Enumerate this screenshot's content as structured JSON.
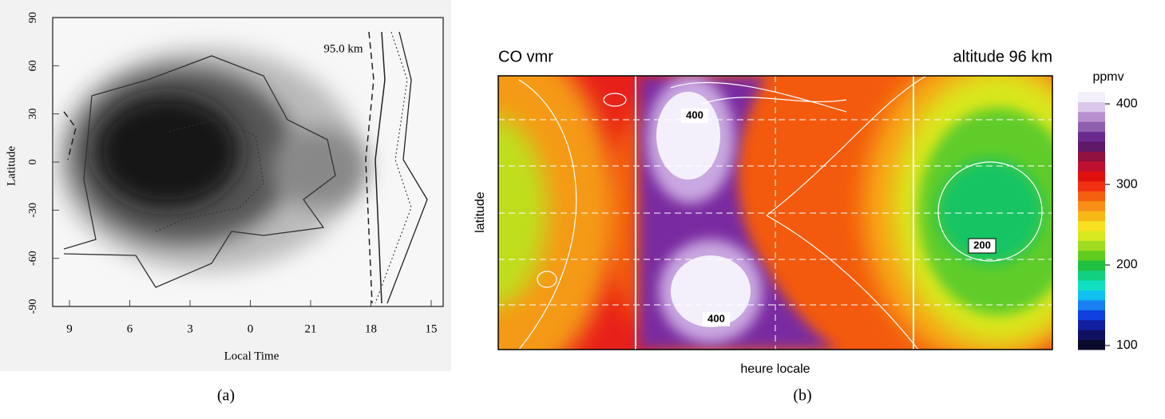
{
  "chart_data": [
    {
      "type": "contour",
      "annotation": "95.0 km",
      "xlabel": "Local Time",
      "ylabel": "Latitude",
      "xticks": [
        9,
        6,
        3,
        0,
        21,
        18,
        15
      ],
      "ylim": [
        -90,
        90
      ],
      "yticks": [
        -90,
        -60,
        -30,
        0,
        30,
        60,
        90
      ],
      "caption": "(a)"
    },
    {
      "type": "contour",
      "title": "CO vmr",
      "subtitle": "altitude 96 km",
      "xlabel": "heure locale",
      "ylabel": "latitude",
      "colorbar_label": "ppmv",
      "clim": [
        95,
        415
      ],
      "cticks": [
        100,
        200,
        300,
        400
      ],
      "contour_labels": [
        "400",
        "400",
        "200"
      ],
      "caption": "(b)"
    }
  ]
}
